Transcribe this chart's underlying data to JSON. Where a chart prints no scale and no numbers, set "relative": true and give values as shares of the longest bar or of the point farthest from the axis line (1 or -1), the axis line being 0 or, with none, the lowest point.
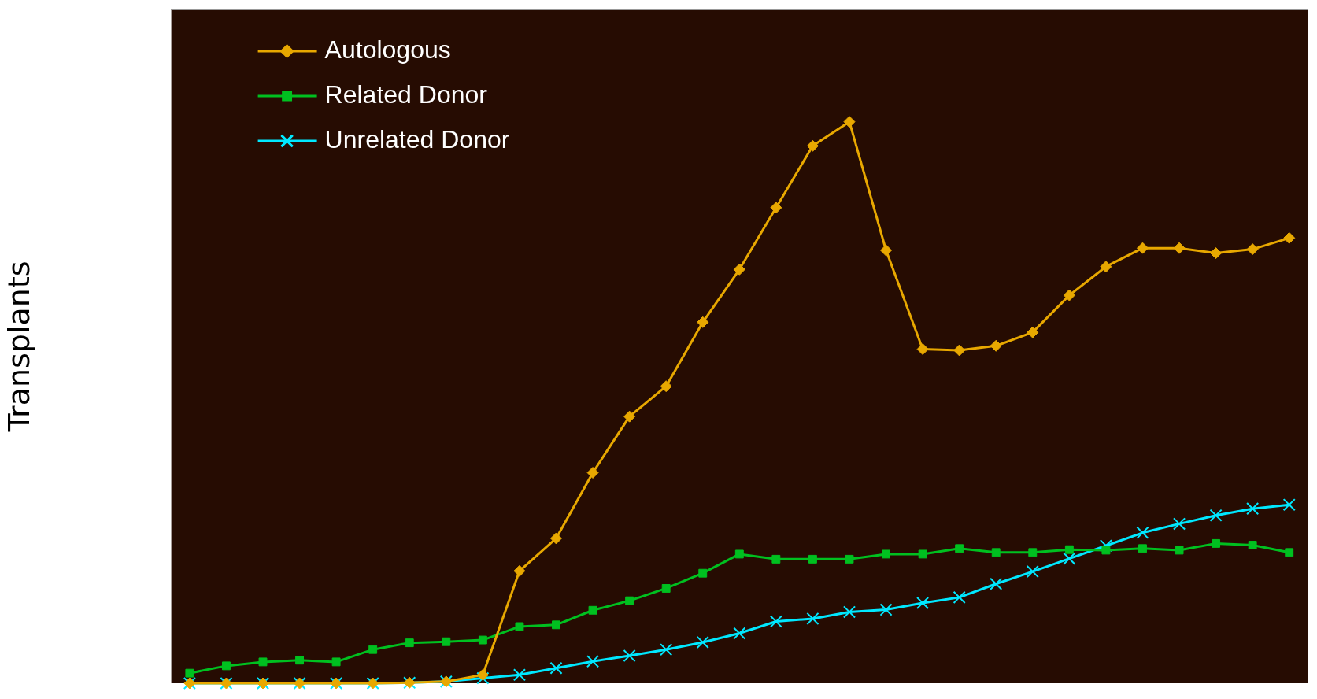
{
  "chart_data": {
    "type": "line",
    "ylabel": "Transplants",
    "relative": true,
    "legend": "top left",
    "line_style": "solid",
    "categories": [
      null,
      null,
      null,
      null,
      null,
      null,
      null,
      null,
      null,
      null,
      null,
      null,
      null,
      null,
      null,
      null,
      null,
      null,
      null,
      null,
      null,
      null,
      null,
      null,
      null,
      null,
      null,
      null,
      null,
      null,
      null
    ],
    "series": [
      {
        "name": "Autologous",
        "color": "#e8a800",
        "marker": "diamond",
        "values": [
          0,
          0,
          0,
          0,
          0,
          0,
          0.001,
          0.003,
          0.015,
          0.2,
          0.258,
          0.375,
          0.475,
          0.529,
          0.643,
          0.737,
          0.847,
          0.957,
          1,
          0.771,
          0.595,
          0.593,
          0.601,
          0.625,
          0.691,
          0.742,
          0.775,
          0.775,
          0.766,
          0.773,
          0.793
        ]
      },
      {
        "name": "Related Donor",
        "color": "#00c020",
        "marker": "square",
        "values": [
          0.018,
          0.031,
          0.038,
          0.041,
          0.038,
          0.06,
          0.072,
          0.074,
          0.077,
          0.101,
          0.104,
          0.13,
          0.147,
          0.169,
          0.196,
          0.23,
          0.221,
          0.221,
          0.221,
          0.23,
          0.23,
          0.24,
          0.233,
          0.233,
          0.238,
          0.237,
          0.24,
          0.237,
          0.249,
          0.246,
          0.233
        ]
      },
      {
        "name": "Unrelated Donor",
        "color": "#00e8ff",
        "marker": "cross",
        "values": [
          0,
          0,
          0,
          0,
          0,
          0,
          0.001,
          0.003,
          0.009,
          0.015,
          0.027,
          0.039,
          0.049,
          0.06,
          0.073,
          0.089,
          0.11,
          0.115,
          0.127,
          0.131,
          0.143,
          0.153,
          0.177,
          0.199,
          0.222,
          0.245,
          0.268,
          0.284,
          0.299,
          0.311,
          0.318
        ]
      }
    ]
  }
}
